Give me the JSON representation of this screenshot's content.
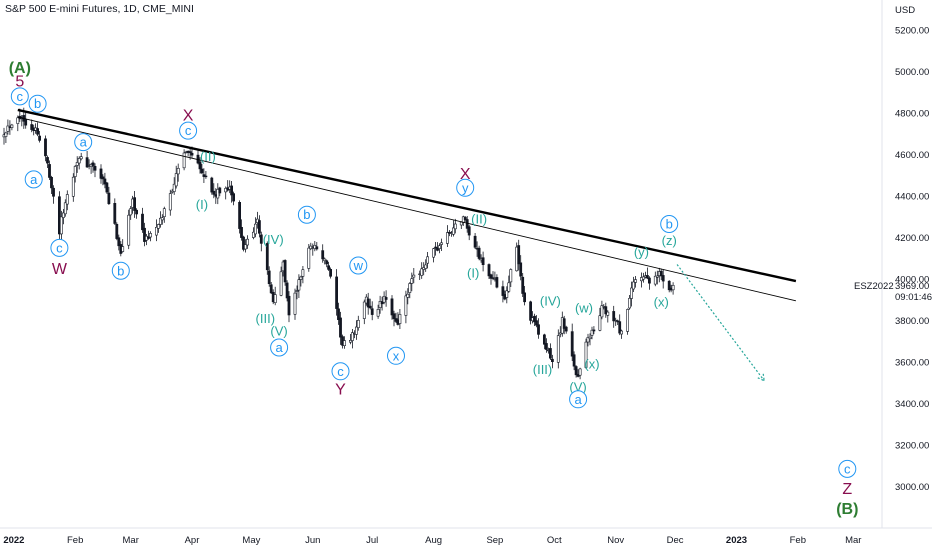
{
  "header": {
    "title": "S&P 500 E-mini Futures, 1D, CME_MINI"
  },
  "price_axis": {
    "currency": "USD"
  },
  "last_price": {
    "symbol": "ESZ2022",
    "price": "3969.00",
    "countdown": "09:01:46"
  },
  "colors": {
    "candle": "#131722",
    "wave_cyan": "#26a69a",
    "wave_blue": "#2196f3",
    "wave_red": "#880e4f",
    "wave_green": "#2e7d32",
    "trendline": "#000000",
    "projection": "#26a69a"
  },
  "chart_data": {
    "type": "candlestick",
    "title": "S&P 500 E-mini Futures, 1D, CME_MINI",
    "ylabel": "USD",
    "ylim": [
      2850,
      5350
    ],
    "xlim": [
      "2021-12-25",
      "2023-03-15"
    ],
    "y_ticks": [
      3000,
      3200,
      3400,
      3600,
      3800,
      4000,
      4200,
      4400,
      4600,
      4800,
      5000,
      5200
    ],
    "y_tick_labels": [
      "3000.00",
      "3200.00",
      "3400.00",
      "3600.00",
      "3800.00",
      "4000.00",
      "4200.00",
      "4400.00",
      "4600.00",
      "4800.00",
      "5000.00",
      "5200.00"
    ],
    "x_ticks": [
      {
        "date": "2022-01-01",
        "label": "2022",
        "bold": true
      },
      {
        "date": "2022-02-01",
        "label": "Feb"
      },
      {
        "date": "2022-03-01",
        "label": "Mar"
      },
      {
        "date": "2022-04-01",
        "label": "Apr"
      },
      {
        "date": "2022-05-01",
        "label": "May"
      },
      {
        "date": "2022-06-01",
        "label": "Jun"
      },
      {
        "date": "2022-07-01",
        "label": "Jul"
      },
      {
        "date": "2022-08-01",
        "label": "Aug"
      },
      {
        "date": "2022-09-01",
        "label": "Sep"
      },
      {
        "date": "2022-10-01",
        "label": "Oct"
      },
      {
        "date": "2022-11-01",
        "label": "Nov"
      },
      {
        "date": "2022-12-01",
        "label": "Dec"
      },
      {
        "date": "2023-01-01",
        "label": "2023",
        "bold": true
      },
      {
        "date": "2023-02-01",
        "label": "Feb"
      },
      {
        "date": "2023-03-01",
        "label": "Mar"
      }
    ],
    "price_path": [
      [
        "2021-12-26",
        4700
      ],
      [
        "2022-01-03",
        4790
      ],
      [
        "2022-01-12",
        4720
      ],
      [
        "2022-01-18",
        4560
      ],
      [
        "2022-01-24",
        4230
      ],
      [
        "2022-01-26",
        4330
      ],
      [
        "2022-02-02",
        4580
      ],
      [
        "2022-02-10",
        4540
      ],
      [
        "2022-02-16",
        4450
      ],
      [
        "2022-02-24",
        4130
      ],
      [
        "2022-03-02",
        4380
      ],
      [
        "2022-03-08",
        4190
      ],
      [
        "2022-03-15",
        4250
      ],
      [
        "2022-03-29",
        4630
      ],
      [
        "2022-04-04",
        4570
      ],
      [
        "2022-04-12",
        4400
      ],
      [
        "2022-04-20",
        4450
      ],
      [
        "2022-04-27",
        4150
      ],
      [
        "2022-05-04",
        4280
      ],
      [
        "2022-05-12",
        3880
      ],
      [
        "2022-05-17",
        4080
      ],
      [
        "2022-05-20",
        3830
      ],
      [
        "2022-05-31",
        4170
      ],
      [
        "2022-06-03",
        4150
      ],
      [
        "2022-06-09",
        4050
      ],
      [
        "2022-06-16",
        3680
      ],
      [
        "2022-06-20",
        3700
      ],
      [
        "2022-06-28",
        3900
      ],
      [
        "2022-07-01",
        3830
      ],
      [
        "2022-07-07",
        3900
      ],
      [
        "2022-07-14",
        3790
      ],
      [
        "2022-07-21",
        3990
      ],
      [
        "2022-08-02",
        4140
      ],
      [
        "2022-08-16",
        4300
      ],
      [
        "2022-08-22",
        4150
      ],
      [
        "2022-08-26",
        4070
      ],
      [
        "2022-09-06",
        3920
      ],
      [
        "2022-09-12",
        4140
      ],
      [
        "2022-09-16",
        3880
      ],
      [
        "2022-09-30",
        3600
      ],
      [
        "2022-10-05",
        3800
      ],
      [
        "2022-10-13",
        3520
      ],
      [
        "2022-10-17",
        3710
      ],
      [
        "2022-10-21",
        3750
      ],
      [
        "2022-10-25",
        3860
      ],
      [
        "2022-11-02",
        3780
      ],
      [
        "2022-11-04",
        3730
      ],
      [
        "2022-11-10",
        3980
      ],
      [
        "2022-11-15",
        4020
      ],
      [
        "2022-11-18",
        3970
      ],
      [
        "2022-11-23",
        4030
      ],
      [
        "2022-11-28",
        3960
      ],
      [
        "2022-11-30",
        3969
      ]
    ],
    "trendlines": [
      {
        "name": "upper",
        "from": [
          "2022-01-03",
          4815
        ],
        "to": [
          "2023-01-31",
          3990
        ],
        "weight": "bold"
      },
      {
        "name": "lower",
        "from": [
          "2022-01-03",
          4780
        ],
        "to": [
          "2023-01-31",
          3895
        ],
        "weight": "thin"
      }
    ],
    "projection": {
      "from": [
        "2022-12-02",
        4070
      ],
      "to": [
        "2023-01-15",
        3510
      ]
    },
    "wave_labels": [
      {
        "text": "(A)",
        "date": "2022-01-04",
        "price": 5020,
        "color": "green",
        "circle": false
      },
      {
        "text": "5",
        "date": "2022-01-04",
        "price": 4955,
        "color": "red",
        "circle": false
      },
      {
        "text": "c",
        "date": "2022-01-04",
        "price": 4880,
        "color": "blue",
        "circle": true
      },
      {
        "text": "b",
        "date": "2022-01-13",
        "price": 4845,
        "color": "blue",
        "circle": true
      },
      {
        "text": "a",
        "date": "2022-01-11",
        "price": 4480,
        "color": "blue",
        "circle": true
      },
      {
        "text": "c",
        "date": "2022-01-24",
        "price": 4150,
        "color": "blue",
        "circle": true
      },
      {
        "text": "W",
        "date": "2022-01-24",
        "price": 4050,
        "color": "red",
        "circle": false
      },
      {
        "text": "a",
        "date": "2022-02-05",
        "price": 4660,
        "color": "blue",
        "circle": true
      },
      {
        "text": "b",
        "date": "2022-02-24",
        "price": 4040,
        "color": "blue",
        "circle": true
      },
      {
        "text": "X",
        "date": "2022-03-30",
        "price": 4790,
        "color": "red",
        "circle": false
      },
      {
        "text": "c",
        "date": "2022-03-30",
        "price": 4715,
        "color": "blue",
        "circle": true
      },
      {
        "text": "(II)",
        "date": "2022-04-09",
        "price": 4590,
        "color": "cyan",
        "circle": false
      },
      {
        "text": "(I)",
        "date": "2022-04-06",
        "price": 4360,
        "color": "cyan",
        "circle": false
      },
      {
        "text": "(IV)",
        "date": "2022-05-12",
        "price": 4190,
        "color": "cyan",
        "circle": false
      },
      {
        "text": "b",
        "date": "2022-05-29",
        "price": 4310,
        "color": "blue",
        "circle": true
      },
      {
        "text": "(III)",
        "date": "2022-05-08",
        "price": 3810,
        "color": "cyan",
        "circle": false
      },
      {
        "text": "(V)",
        "date": "2022-05-15",
        "price": 3750,
        "color": "cyan",
        "circle": false
      },
      {
        "text": "a",
        "date": "2022-05-15",
        "price": 3670,
        "color": "blue",
        "circle": true
      },
      {
        "text": "w",
        "date": "2022-06-24",
        "price": 4065,
        "color": "blue",
        "circle": true
      },
      {
        "text": "c",
        "date": "2022-06-15",
        "price": 3555,
        "color": "blue",
        "circle": true
      },
      {
        "text": "Y",
        "date": "2022-06-15",
        "price": 3470,
        "color": "red",
        "circle": false
      },
      {
        "text": "x",
        "date": "2022-07-13",
        "price": 3630,
        "color": "blue",
        "circle": true
      },
      {
        "text": "X",
        "date": "2022-08-17",
        "price": 4510,
        "color": "red",
        "circle": false
      },
      {
        "text": "y",
        "date": "2022-08-17",
        "price": 4440,
        "color": "blue",
        "circle": true
      },
      {
        "text": "(II)",
        "date": "2022-08-24",
        "price": 4290,
        "color": "cyan",
        "circle": false
      },
      {
        "text": "(I)",
        "date": "2022-08-21",
        "price": 4030,
        "color": "cyan",
        "circle": false
      },
      {
        "text": "(IV)",
        "date": "2022-09-29",
        "price": 3895,
        "color": "cyan",
        "circle": false
      },
      {
        "text": "(w)",
        "date": "2022-10-16",
        "price": 3860,
        "color": "cyan",
        "circle": false
      },
      {
        "text": "(III)",
        "date": "2022-09-25",
        "price": 3565,
        "color": "cyan",
        "circle": false
      },
      {
        "text": "(x)",
        "date": "2022-10-20",
        "price": 3590,
        "color": "cyan",
        "circle": false
      },
      {
        "text": "(V)",
        "date": "2022-10-13",
        "price": 3480,
        "color": "cyan",
        "circle": false
      },
      {
        "text": "a",
        "date": "2022-10-13",
        "price": 3420,
        "color": "blue",
        "circle": true
      },
      {
        "text": "(y)",
        "date": "2022-11-14",
        "price": 4130,
        "color": "cyan",
        "circle": false
      },
      {
        "text": "b",
        "date": "2022-11-28",
        "price": 4265,
        "color": "blue",
        "circle": true
      },
      {
        "text": "(z)",
        "date": "2022-11-28",
        "price": 4185,
        "color": "cyan",
        "circle": false
      },
      {
        "text": "(x)",
        "date": "2022-11-24",
        "price": 3890,
        "color": "cyan",
        "circle": false
      },
      {
        "text": "c",
        "date": "2023-02-26",
        "price": 3085,
        "color": "blue",
        "circle": true
      },
      {
        "text": "Z",
        "date": "2023-02-26",
        "price": 2990,
        "color": "red",
        "circle": false
      },
      {
        "text": "(B)",
        "date": "2023-02-26",
        "price": 2895,
        "color": "green",
        "circle": false
      }
    ]
  }
}
